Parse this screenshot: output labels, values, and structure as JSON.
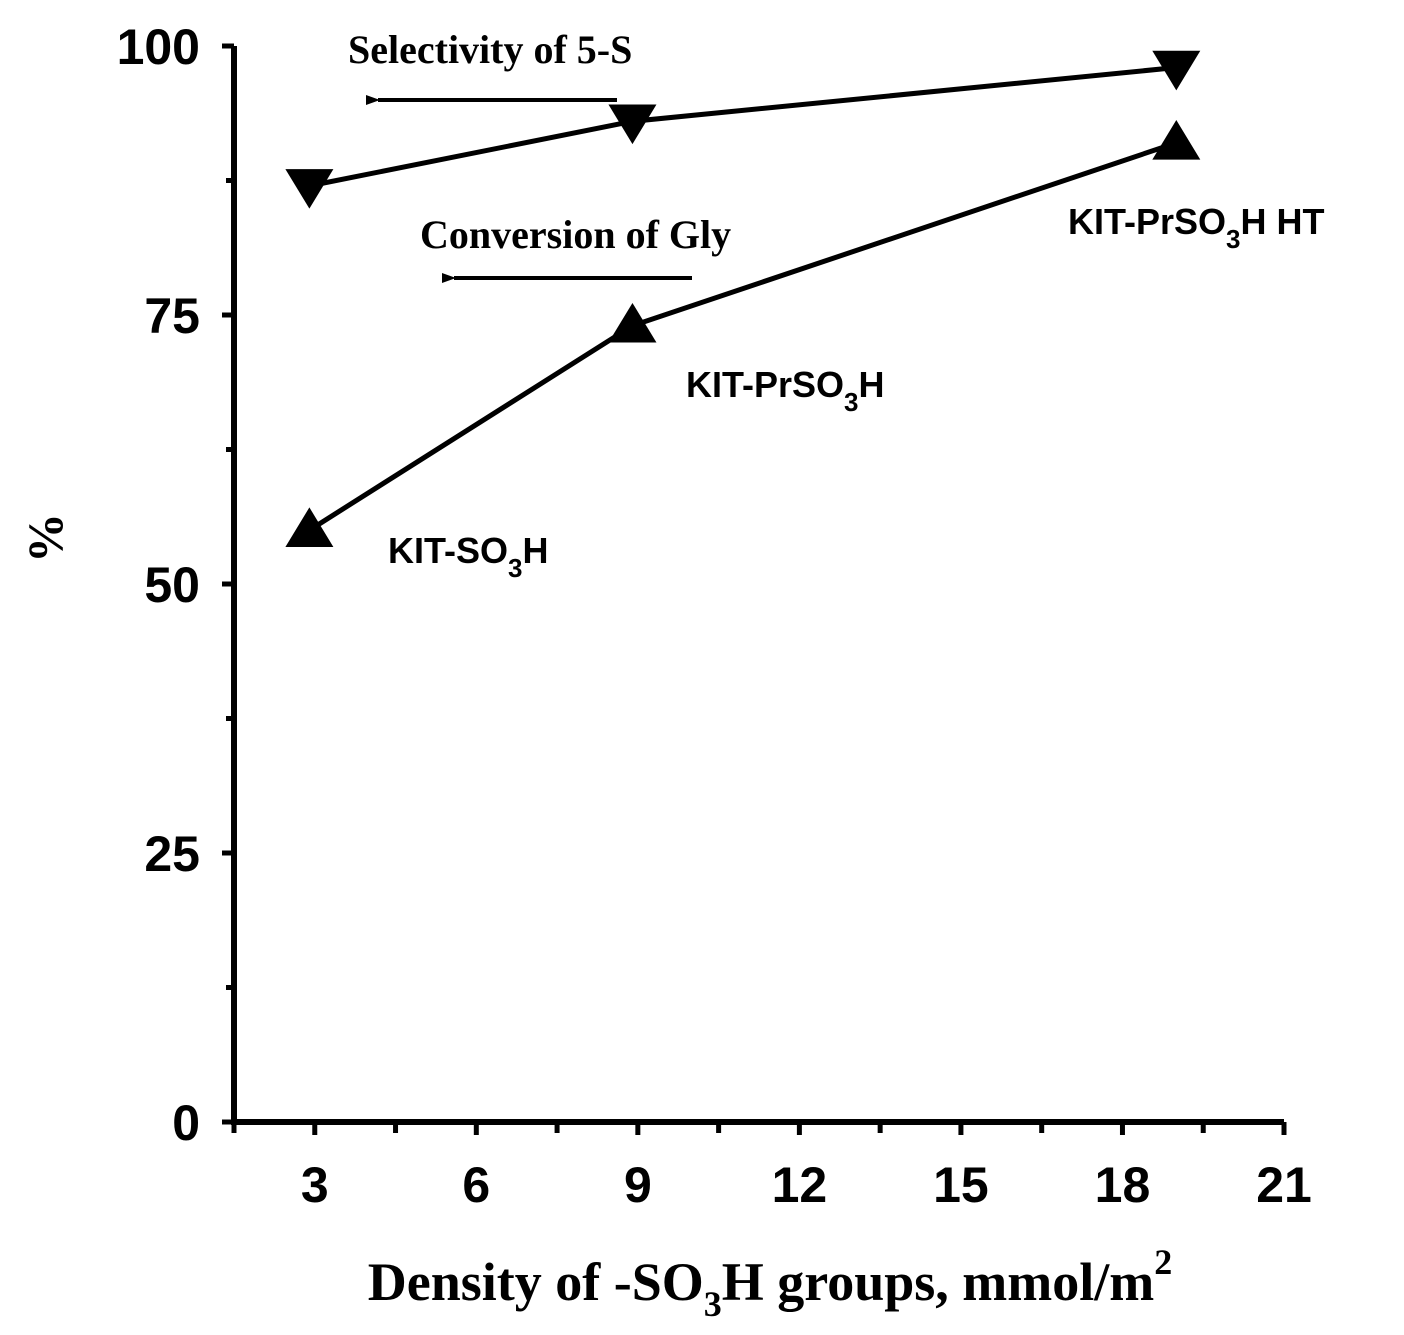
{
  "chart_data": {
    "type": "line",
    "xlabel_parts": [
      "Density of -SO",
      "3",
      "H groups, mmol/m",
      "2"
    ],
    "ylabel": "%",
    "xlim": [
      1.5,
      21
    ],
    "ylim": [
      0,
      100
    ],
    "x_ticks": [
      "3",
      "6",
      "9",
      "12",
      "15",
      "18",
      "21"
    ],
    "y_ticks": [
      "0",
      "25",
      "50",
      "75",
      "100"
    ],
    "series": [
      {
        "name": "Selectivity of 5-S",
        "marker": "triangle-down",
        "x": [
          2.9,
          8.9,
          19.0
        ],
        "y": [
          87,
          93,
          98
        ]
      },
      {
        "name": "Conversion of Gly",
        "marker": "triangle-up",
        "x": [
          2.9,
          8.9,
          19.0
        ],
        "y": [
          55,
          74,
          91
        ]
      }
    ],
    "point_labels": [
      {
        "main": "KIT-SO",
        "sub": "3",
        "end": "H"
      },
      {
        "main": "KIT-PrSO",
        "sub": "3",
        "end": "H"
      },
      {
        "main": "KIT-PrSO",
        "sub": "3",
        "end": "H HT"
      }
    ]
  }
}
